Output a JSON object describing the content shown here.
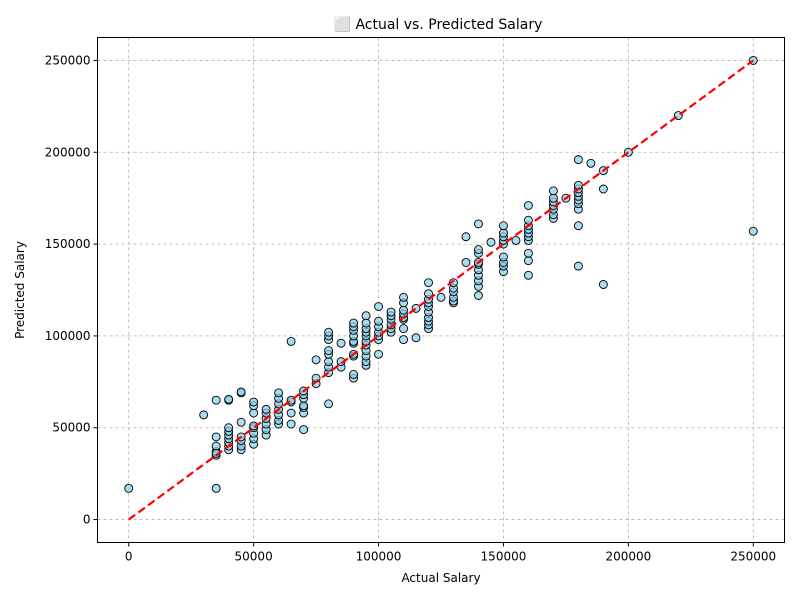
{
  "chart_data": {
    "type": "scatter",
    "title": "⬜ Actual vs. Predicted Salary",
    "xlabel": "Actual Salary",
    "ylabel": "Predicted Salary",
    "xlim": [
      -12500,
      262500
    ],
    "ylim": [
      -12500,
      262500
    ],
    "xticks": [
      0,
      50000,
      100000,
      150000,
      200000,
      250000
    ],
    "yticks": [
      0,
      50000,
      100000,
      150000,
      200000,
      250000
    ],
    "grid": true,
    "colors": {
      "point_fill": "#87CEEB",
      "point_edge": "#000000",
      "reference_line": "#FF0000",
      "grid": "#b0b0b0"
    },
    "reference_line": {
      "from": [
        0,
        0
      ],
      "to": [
        250000,
        250000
      ],
      "style": "dashed"
    },
    "points": [
      [
        0,
        17000
      ],
      [
        35000,
        17000
      ],
      [
        30000,
        57000
      ],
      [
        35000,
        35000
      ],
      [
        35000,
        37000
      ],
      [
        35000,
        40000
      ],
      [
        35000,
        45000
      ],
      [
        35000,
        65000
      ],
      [
        35000,
        36000
      ],
      [
        40000,
        38000
      ],
      [
        40000,
        40000
      ],
      [
        40000,
        42000
      ],
      [
        40000,
        44000
      ],
      [
        40000,
        46000
      ],
      [
        40000,
        48000
      ],
      [
        40000,
        50000
      ],
      [
        40000,
        65000
      ],
      [
        40000,
        65500
      ],
      [
        45000,
        38000
      ],
      [
        45000,
        40000
      ],
      [
        45000,
        43000
      ],
      [
        45000,
        45000
      ],
      [
        45000,
        53000
      ],
      [
        45000,
        69000
      ],
      [
        45000,
        69500
      ],
      [
        50000,
        41000
      ],
      [
        50000,
        44000
      ],
      [
        50000,
        47000
      ],
      [
        50000,
        50000
      ],
      [
        50000,
        51000
      ],
      [
        50000,
        58000
      ],
      [
        50000,
        62000
      ],
      [
        50000,
        64000
      ],
      [
        55000,
        46000
      ],
      [
        55000,
        49000
      ],
      [
        55000,
        52000
      ],
      [
        55000,
        55000
      ],
      [
        55000,
        58000
      ],
      [
        55000,
        60000
      ],
      [
        60000,
        52000
      ],
      [
        60000,
        54000
      ],
      [
        60000,
        57000
      ],
      [
        60000,
        60000
      ],
      [
        60000,
        63000
      ],
      [
        60000,
        66000
      ],
      [
        60000,
        69000
      ],
      [
        65000,
        52000
      ],
      [
        65000,
        58000
      ],
      [
        65000,
        64000
      ],
      [
        65000,
        65000
      ],
      [
        65000,
        97000
      ],
      [
        70000,
        49000
      ],
      [
        70000,
        58000
      ],
      [
        70000,
        61000
      ],
      [
        70000,
        62000
      ],
      [
        70000,
        66000
      ],
      [
        70000,
        68000
      ],
      [
        70000,
        70000
      ],
      [
        75000,
        74000
      ],
      [
        75000,
        77000
      ],
      [
        75000,
        87000
      ],
      [
        80000,
        63000
      ],
      [
        80000,
        80000
      ],
      [
        80000,
        83000
      ],
      [
        80000,
        86000
      ],
      [
        80000,
        90000
      ],
      [
        80000,
        92000
      ],
      [
        80000,
        98000
      ],
      [
        80000,
        100000
      ],
      [
        80000,
        102000
      ],
      [
        85000,
        83000
      ],
      [
        85000,
        86000
      ],
      [
        85000,
        96000
      ],
      [
        90000,
        77000
      ],
      [
        90000,
        79000
      ],
      [
        90000,
        89000
      ],
      [
        90000,
        90000
      ],
      [
        90000,
        96000
      ],
      [
        90000,
        97000
      ],
      [
        90000,
        100000
      ],
      [
        90000,
        103000
      ],
      [
        90000,
        105000
      ],
      [
        90000,
        107000
      ],
      [
        95000,
        84000
      ],
      [
        95000,
        86000
      ],
      [
        95000,
        89000
      ],
      [
        95000,
        92000
      ],
      [
        95000,
        95000
      ],
      [
        95000,
        97000
      ],
      [
        95000,
        100000
      ],
      [
        95000,
        102000
      ],
      [
        95000,
        104000
      ],
      [
        95000,
        107000
      ],
      [
        95000,
        111000
      ],
      [
        100000,
        90000
      ],
      [
        100000,
        98000
      ],
      [
        100000,
        100000
      ],
      [
        100000,
        102000
      ],
      [
        100000,
        105000
      ],
      [
        100000,
        108000
      ],
      [
        100000,
        116000
      ],
      [
        105000,
        102000
      ],
      [
        105000,
        104000
      ],
      [
        105000,
        106000
      ],
      [
        105000,
        109000
      ],
      [
        105000,
        111000
      ],
      [
        105000,
        113000
      ],
      [
        110000,
        98000
      ],
      [
        110000,
        104000
      ],
      [
        110000,
        109000
      ],
      [
        110000,
        110000
      ],
      [
        110000,
        112000
      ],
      [
        110000,
        114000
      ],
      [
        110000,
        118000
      ],
      [
        110000,
        121000
      ],
      [
        115000,
        99000
      ],
      [
        115000,
        115000
      ],
      [
        120000,
        104000
      ],
      [
        120000,
        106000
      ],
      [
        120000,
        108000
      ],
      [
        120000,
        110000
      ],
      [
        120000,
        113000
      ],
      [
        120000,
        116000
      ],
      [
        120000,
        118000
      ],
      [
        120000,
        120000
      ],
      [
        120000,
        123000
      ],
      [
        120000,
        129000
      ],
      [
        125000,
        121000
      ],
      [
        130000,
        118000
      ],
      [
        130000,
        119000
      ],
      [
        130000,
        121000
      ],
      [
        130000,
        124000
      ],
      [
        130000,
        126000
      ],
      [
        130000,
        129000
      ],
      [
        135000,
        140000
      ],
      [
        135000,
        154000
      ],
      [
        140000,
        122000
      ],
      [
        140000,
        127000
      ],
      [
        140000,
        130000
      ],
      [
        140000,
        133000
      ],
      [
        140000,
        136000
      ],
      [
        140000,
        139000
      ],
      [
        140000,
        140000
      ],
      [
        140000,
        145000
      ],
      [
        140000,
        147000
      ],
      [
        140000,
        161000
      ],
      [
        145000,
        151000
      ],
      [
        150000,
        135000
      ],
      [
        150000,
        138000
      ],
      [
        150000,
        140000
      ],
      [
        150000,
        143000
      ],
      [
        150000,
        150000
      ],
      [
        150000,
        152000
      ],
      [
        150000,
        154000
      ],
      [
        150000,
        156000
      ],
      [
        150000,
        160000
      ],
      [
        155000,
        152000
      ],
      [
        160000,
        133000
      ],
      [
        160000,
        141000
      ],
      [
        160000,
        145000
      ],
      [
        160000,
        152000
      ],
      [
        160000,
        154000
      ],
      [
        160000,
        156000
      ],
      [
        160000,
        158000
      ],
      [
        160000,
        160000
      ],
      [
        160000,
        163000
      ],
      [
        160000,
        171000
      ],
      [
        170000,
        164000
      ],
      [
        170000,
        166000
      ],
      [
        170000,
        169000
      ],
      [
        170000,
        171000
      ],
      [
        170000,
        173000
      ],
      [
        170000,
        175000
      ],
      [
        170000,
        179000
      ],
      [
        175000,
        175000
      ],
      [
        180000,
        138000
      ],
      [
        180000,
        160000
      ],
      [
        180000,
        169000
      ],
      [
        180000,
        172000
      ],
      [
        180000,
        174000
      ],
      [
        180000,
        176000
      ],
      [
        180000,
        178000
      ],
      [
        180000,
        180000
      ],
      [
        180000,
        182000
      ],
      [
        180000,
        196000
      ],
      [
        185000,
        194000
      ],
      [
        190000,
        128000
      ],
      [
        190000,
        180000
      ],
      [
        190000,
        190000
      ],
      [
        200000,
        200000
      ],
      [
        220000,
        220000
      ],
      [
        250000,
        157000
      ],
      [
        250000,
        250000
      ]
    ]
  }
}
